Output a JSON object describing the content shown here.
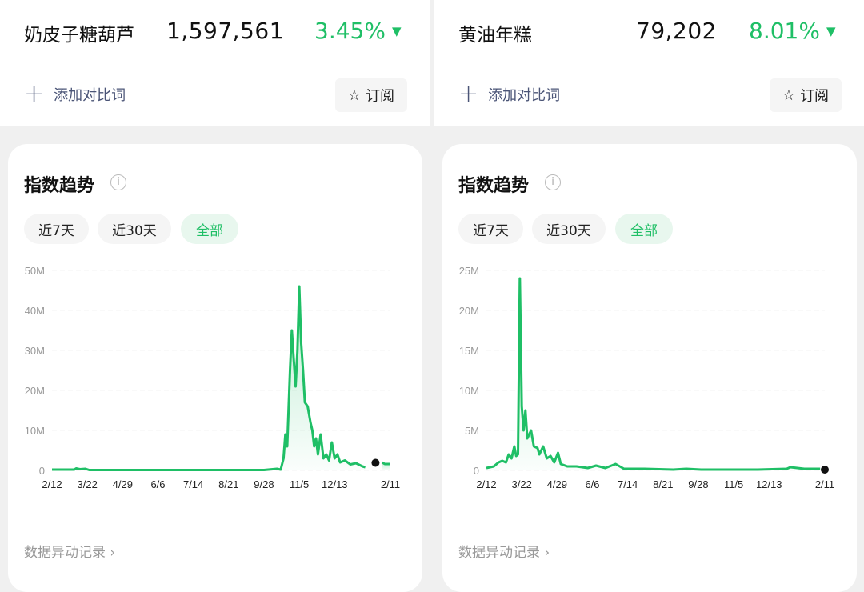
{
  "panels": [
    {
      "keyword": "奶皮子糖葫芦",
      "index_value": "1,597,561",
      "change": "3.45%",
      "change_icon": "triangle-down-icon",
      "add_compare": "添加对比词",
      "subscribe": "订阅",
      "section_title": "指数趋势",
      "ranges": [
        "近7天",
        "近30天",
        "全部"
      ],
      "active_range": "全部",
      "anomaly_link": "数据异动记录 ›"
    },
    {
      "keyword": "黄油年糕",
      "index_value": "79,202",
      "change": "8.01%",
      "change_icon": "triangle-down-icon",
      "add_compare": "添加对比词",
      "subscribe": "订阅",
      "section_title": "指数趋势",
      "ranges": [
        "近7天",
        "近30天",
        "全部"
      ],
      "active_range": "全部",
      "anomaly_link": "数据异动记录 ›"
    }
  ],
  "colors": {
    "accent": "#1fbf66",
    "dot": "#111111"
  },
  "chart_data": [
    {
      "type": "area",
      "unit": "M",
      "ylim": [
        0,
        50
      ],
      "yticks": [
        "0",
        "10M",
        "20M",
        "30M",
        "40M",
        "50M"
      ],
      "ytick_values": [
        0,
        10,
        20,
        30,
        40,
        50
      ],
      "xticks": [
        "2/12",
        "3/22",
        "4/29",
        "6/6",
        "7/14",
        "8/21",
        "9/28",
        "11/5",
        "12/13",
        "2/11"
      ],
      "grid": true,
      "series": [
        {
          "segment": [
            [
              "2/12",
              0.2
            ],
            [
              "3/8",
              0.2
            ],
            [
              "3/10",
              0.5
            ],
            [
              "3/14",
              0.3
            ],
            [
              "3/20",
              0.4
            ],
            [
              "3/24",
              0.1
            ],
            [
              "6/1",
              0.1
            ],
            [
              "9/28",
              0.1
            ],
            [
              "10/12",
              0.4
            ],
            [
              "10/16",
              0.2
            ],
            [
              "10/19",
              3
            ],
            [
              "10/21",
              9
            ],
            [
              "10/23",
              6
            ],
            [
              "10/26",
              25
            ],
            [
              "10/28",
              35
            ],
            [
              "10/30",
              28
            ],
            [
              "11/1",
              21
            ],
            [
              "11/3",
              30
            ],
            [
              "11/5",
              46
            ],
            [
              "11/7",
              32
            ],
            [
              "11/9",
              25
            ],
            [
              "11/11",
              17
            ],
            [
              "11/14",
              16
            ],
            [
              "11/17",
              12
            ],
            [
              "11/19",
              10
            ],
            [
              "11/21",
              6
            ],
            [
              "11/23",
              8
            ],
            [
              "11/25",
              4
            ],
            [
              "11/28",
              9
            ],
            [
              "12/1",
              3
            ],
            [
              "12/4",
              4
            ],
            [
              "12/7",
              2.5
            ],
            [
              "12/10",
              7
            ],
            [
              "12/13",
              3
            ],
            [
              "12/16",
              4
            ],
            [
              "12/19",
              2
            ],
            [
              "12/24",
              2.5
            ],
            [
              "12/30",
              1.5
            ],
            [
              "1/5",
              1.8
            ],
            [
              "1/12",
              1
            ],
            [
              "1/15",
              0.8
            ]
          ]
        },
        {
          "segment": [
            [
              "2/2",
              2
            ],
            [
              "2/5",
              1.6
            ],
            [
              "2/11",
              1.6
            ]
          ]
        }
      ],
      "marker": [
        "1/26",
        1.9
      ]
    },
    {
      "type": "area",
      "unit": "M",
      "ylim": [
        0,
        25
      ],
      "yticks": [
        "0",
        "5M",
        "10M",
        "15M",
        "20M",
        "25M"
      ],
      "ytick_values": [
        0,
        5,
        10,
        15,
        20,
        25
      ],
      "xticks": [
        "2/12",
        "3/22",
        "4/29",
        "6/6",
        "7/14",
        "8/21",
        "9/28",
        "11/5",
        "12/13",
        "2/11"
      ],
      "grid": true,
      "series": [
        {
          "segment": [
            [
              "2/12",
              0.3
            ],
            [
              "2/20",
              0.5
            ],
            [
              "2/25",
              1
            ],
            [
              "3/1",
              1.2
            ],
            [
              "3/5",
              1
            ],
            [
              "3/8",
              2
            ],
            [
              "3/11",
              1.5
            ],
            [
              "3/14",
              3
            ],
            [
              "3/16",
              1.8
            ],
            [
              "3/18",
              2
            ],
            [
              "3/20",
              24
            ],
            [
              "3/22",
              8
            ],
            [
              "3/24",
              5
            ],
            [
              "3/26",
              7.5
            ],
            [
              "3/28",
              4
            ],
            [
              "4/1",
              5
            ],
            [
              "4/4",
              3
            ],
            [
              "4/8",
              2.8
            ],
            [
              "4/10",
              2
            ],
            [
              "4/14",
              3
            ],
            [
              "4/18",
              1.5
            ],
            [
              "4/22",
              1.8
            ],
            [
              "4/26",
              1
            ],
            [
              "4/30",
              2.2
            ],
            [
              "5/3",
              0.8
            ],
            [
              "5/10",
              0.5
            ],
            [
              "5/20",
              0.5
            ],
            [
              "6/1",
              0.3
            ],
            [
              "6/10",
              0.6
            ],
            [
              "6/20",
              0.3
            ],
            [
              "7/1",
              0.8
            ],
            [
              "7/10",
              0.2
            ],
            [
              "8/1",
              0.2
            ],
            [
              "9/1",
              0.1
            ],
            [
              "9/15",
              0.2
            ],
            [
              "10/1",
              0.1
            ],
            [
              "11/1",
              0.1
            ],
            [
              "12/1",
              0.1
            ],
            [
              "1/1",
              0.2
            ],
            [
              "1/5",
              0.4
            ],
            [
              "1/20",
              0.2
            ],
            [
              "2/6",
              0.2
            ]
          ]
        }
      ],
      "marker": [
        "2/11",
        0.1
      ]
    }
  ]
}
